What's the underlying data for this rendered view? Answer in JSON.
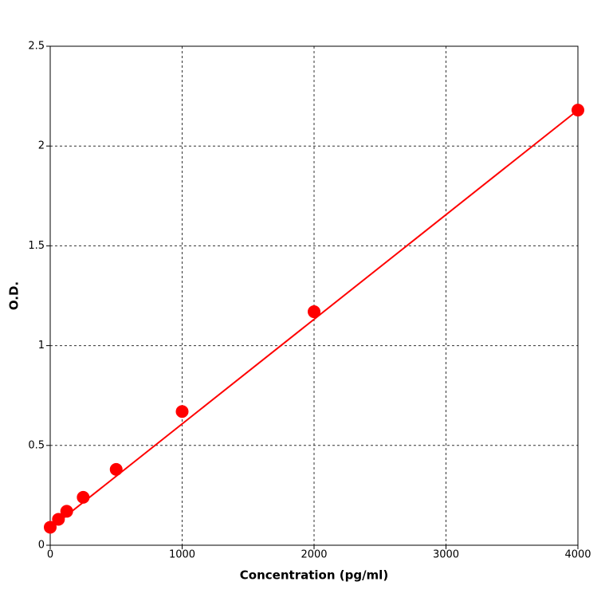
{
  "chart_data": {
    "type": "scatter",
    "x_label": "Concentration (pg/ml)",
    "y_label": "O.D.",
    "xlim": [
      0,
      4000
    ],
    "ylim": [
      0,
      2.5
    ],
    "xticks": [
      0,
      1000,
      2000,
      3000,
      4000
    ],
    "yticks": [
      0,
      0.5,
      1,
      1.5,
      2,
      2.5
    ],
    "grid": true,
    "series": [
      {
        "mode": "markers",
        "color": "#ff0000",
        "x": [
          0,
          62.5,
          125,
          250,
          500,
          1000,
          2000,
          4000
        ],
        "values": [
          0.09,
          0.13,
          0.17,
          0.24,
          0.38,
          0.67,
          1.17,
          2.18
        ]
      },
      {
        "mode": "line",
        "color": "#ff0000",
        "x": [
          0,
          4000
        ],
        "values": [
          0.084,
          2.18
        ]
      }
    ]
  }
}
